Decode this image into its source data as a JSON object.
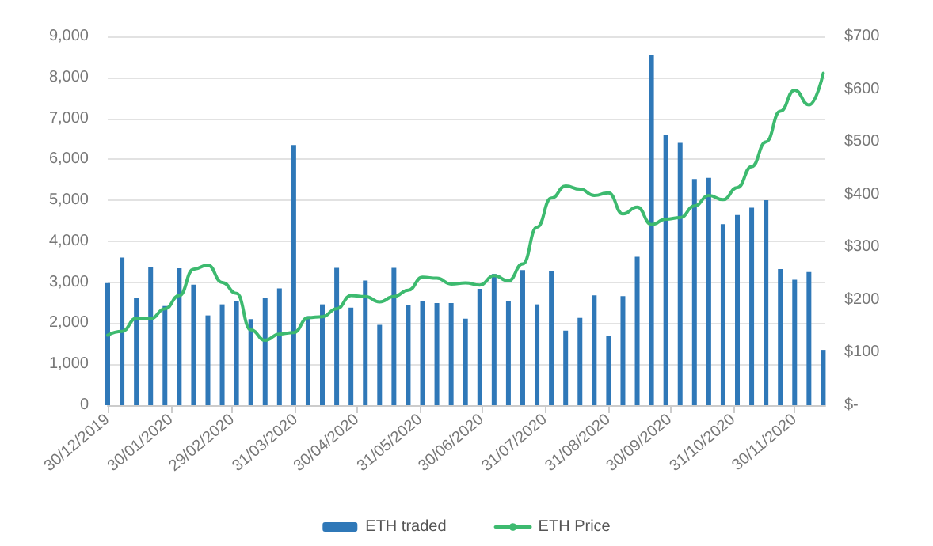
{
  "chart_data": {
    "type": "bar",
    "x": [
      "2019-12-30",
      "2020-01-06",
      "2020-01-13",
      "2020-01-20",
      "2020-01-27",
      "2020-02-03",
      "2020-02-10",
      "2020-02-17",
      "2020-02-24",
      "2020-03-02",
      "2020-03-09",
      "2020-03-16",
      "2020-03-23",
      "2020-03-30",
      "2020-04-06",
      "2020-04-13",
      "2020-04-20",
      "2020-04-27",
      "2020-05-04",
      "2020-05-11",
      "2020-05-18",
      "2020-05-25",
      "2020-06-01",
      "2020-06-08",
      "2020-06-15",
      "2020-06-22",
      "2020-06-29",
      "2020-07-06",
      "2020-07-13",
      "2020-07-20",
      "2020-07-27",
      "2020-08-03",
      "2020-08-10",
      "2020-08-17",
      "2020-08-24",
      "2020-08-31",
      "2020-09-07",
      "2020-09-14",
      "2020-09-21",
      "2020-09-28",
      "2020-10-05",
      "2020-10-12",
      "2020-10-19",
      "2020-10-26",
      "2020-11-02",
      "2020-11-09",
      "2020-11-16",
      "2020-11-23",
      "2020-11-30",
      "2020-12-07",
      "2020-12-14"
    ],
    "series": [
      {
        "name": "ETH traded",
        "color": "#2f78b8",
        "values": [
          2980,
          3600,
          2620,
          3380,
          2420,
          3340,
          2940,
          2190,
          2460,
          2550,
          2100,
          2620,
          2850,
          6350,
          2170,
          2460,
          3350,
          2380,
          3040,
          1960,
          3350,
          2440,
          2530,
          2490,
          2490,
          2110,
          2840,
          3200,
          2530,
          3300,
          2460,
          3270,
          1820,
          2130,
          2680,
          1700,
          2660,
          3620,
          8540,
          6600,
          6400,
          5520,
          5550,
          4420,
          4640,
          4820,
          5000,
          3320,
          3060,
          3250,
          1350
        ]
      },
      {
        "name": "ETH Price",
        "type": "line",
        "axis": "y2",
        "color": "#3dba6f",
        "values": [
          133,
          140,
          165,
          164,
          183,
          208,
          258,
          266,
          233,
          212,
          143,
          123,
          135,
          138,
          166,
          168,
          183,
          208,
          206,
          196,
          206,
          218,
          243,
          241,
          230,
          232,
          228,
          246,
          236,
          268,
          338,
          393,
          416,
          410,
          398,
          403,
          363,
          376,
          343,
          353,
          356,
          378,
          398,
          390,
          413,
          453,
          500,
          558,
          598,
          570,
          630
        ]
      }
    ],
    "xlim": [
      "2019-12-30",
      "2020-12-15"
    ],
    "xticks": [
      {
        "value": "2019-12-30",
        "label": "30/12/2019"
      },
      {
        "value": "2020-01-30",
        "label": "30/01/2020"
      },
      {
        "value": "2020-02-29",
        "label": "29/02/2020"
      },
      {
        "value": "2020-03-31",
        "label": "31/03/2020"
      },
      {
        "value": "2020-04-30",
        "label": "30/04/2020"
      },
      {
        "value": "2020-05-31",
        "label": "31/05/2020"
      },
      {
        "value": "2020-06-30",
        "label": "30/06/2020"
      },
      {
        "value": "2020-07-31",
        "label": "31/07/2020"
      },
      {
        "value": "2020-08-31",
        "label": "31/08/2020"
      },
      {
        "value": "2020-09-30",
        "label": "30/09/2020"
      },
      {
        "value": "2020-10-31",
        "label": "31/10/2020"
      },
      {
        "value": "2020-11-30",
        "label": "30/11/2020"
      }
    ],
    "ylim": [
      0,
      9000
    ],
    "yticks": [
      0,
      {
        "value": 1000,
        "label": "1,000"
      },
      {
        "value": 2000,
        "label": "2,000"
      },
      {
        "value": 3000,
        "label": "3,000"
      },
      {
        "value": 4000,
        "label": "4,000"
      },
      {
        "value": 5000,
        "label": "5,000"
      },
      {
        "value": 6000,
        "label": "6,000"
      },
      {
        "value": 7000,
        "label": "7,000"
      },
      {
        "value": 8000,
        "label": "8,000"
      },
      {
        "value": 9000,
        "label": "9,000"
      }
    ],
    "y2lim": [
      0,
      700
    ],
    "y2ticks": [
      {
        "value": 0,
        "label": "$-"
      },
      {
        "value": 100,
        "label": "$100"
      },
      {
        "value": 200,
        "label": "$200"
      },
      {
        "value": 300,
        "label": "$300"
      },
      {
        "value": 400,
        "label": "$400"
      },
      {
        "value": 500,
        "label": "$500"
      },
      {
        "value": 600,
        "label": "$600"
      },
      {
        "value": 700,
        "label": "$700"
      }
    ],
    "grid": "y",
    "legend": "bottom",
    "marker": "none"
  }
}
